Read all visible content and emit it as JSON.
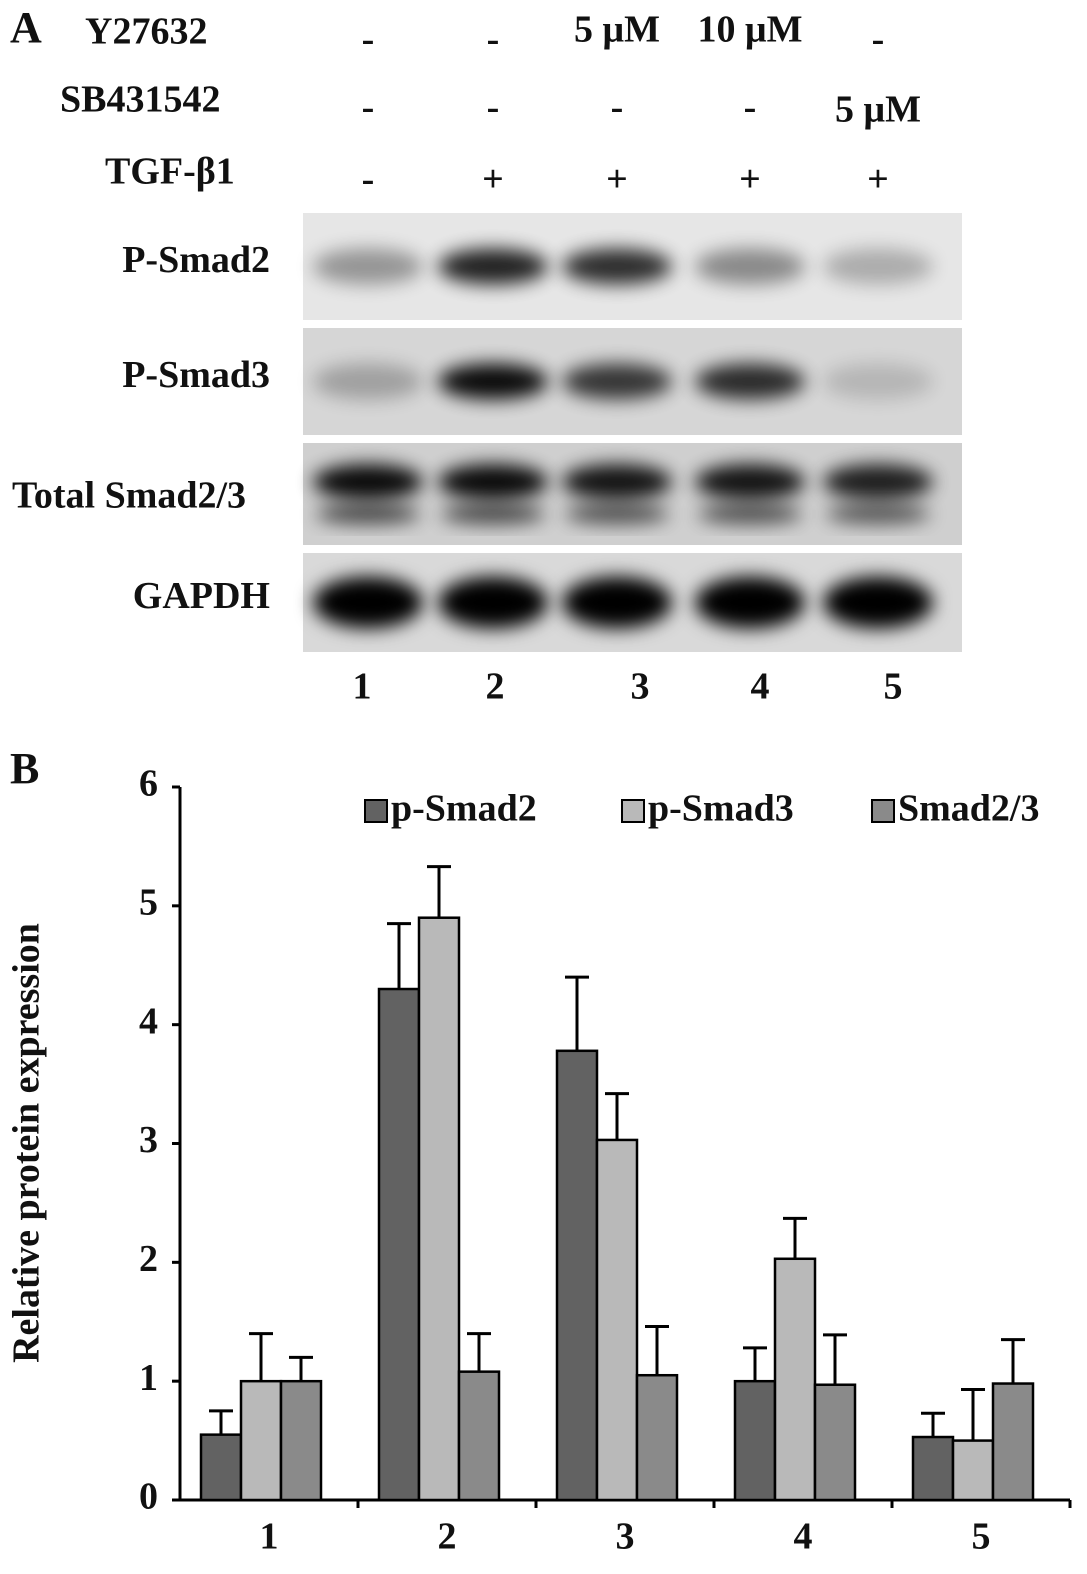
{
  "panel_a": {
    "label": "A",
    "treatments": [
      {
        "name": "Y27632",
        "values": [
          "-",
          "-",
          "5 μM",
          "10 μM",
          "-"
        ]
      },
      {
        "name": "SB431542",
        "values": [
          "-",
          "-",
          "-",
          "-",
          "5 μM"
        ]
      },
      {
        "name": "TGF-β1",
        "values": [
          "-",
          "+",
          "+",
          "+",
          "+"
        ]
      }
    ],
    "blots": [
      "P-Smad2",
      "P-Smad3",
      "Total Smad2/3",
      "GAPDH"
    ],
    "lanes": [
      "1",
      "2",
      "3",
      "4",
      "5"
    ]
  },
  "chart_data": {
    "type": "bar",
    "panel_label": "B",
    "y_label": "Relative protein expression",
    "categories": [
      "1",
      "2",
      "3",
      "4",
      "5"
    ],
    "series": [
      {
        "name": "p-Smad2",
        "color": "#626262",
        "values": [
          0.55,
          4.3,
          3.78,
          1.0,
          0.53
        ],
        "errors": [
          0.2,
          0.55,
          0.62,
          0.28,
          0.2
        ]
      },
      {
        "name": "p-Smad3",
        "color": "#b9b9b9",
        "values": [
          1.0,
          4.9,
          3.03,
          2.03,
          0.5
        ],
        "errors": [
          0.4,
          0.43,
          0.39,
          0.34,
          0.43
        ]
      },
      {
        "name": "Smad2/3",
        "color": "#8a8a8a",
        "values": [
          1.0,
          1.08,
          1.05,
          0.97,
          0.98
        ],
        "errors": [
          0.2,
          0.32,
          0.41,
          0.42,
          0.37
        ]
      }
    ],
    "ylim": [
      0,
      6
    ],
    "yticks": [
      0,
      1,
      2,
      3,
      4,
      5,
      6
    ],
    "legend": "top-right",
    "grid": false
  }
}
